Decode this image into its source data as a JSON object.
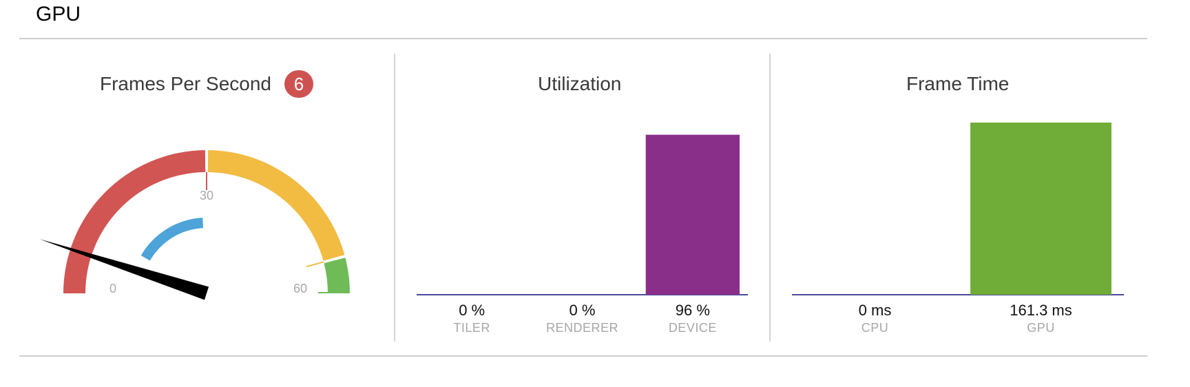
{
  "section": {
    "title": "GPU"
  },
  "fps_panel": {
    "title": "Frames Per Second",
    "badge_value": "6",
    "gauge": {
      "min": 0,
      "max": 60,
      "current": 6,
      "ticks": [
        "0",
        "30",
        "60"
      ],
      "zones": [
        {
          "name": "low",
          "from": 0,
          "to": 30,
          "color": "#d15553"
        },
        {
          "name": "medium",
          "from": 30,
          "to": 55,
          "color": "#f2bb42"
        },
        {
          "name": "high",
          "from": 55,
          "to": 60,
          "color": "#6fbb57"
        }
      ],
      "inner_arc": {
        "from": 10,
        "to": 29,
        "color": "#4ea3d8"
      },
      "needle_color": "#000000"
    }
  },
  "utilization_panel": {
    "title": "Utilization",
    "chart_data": {
      "type": "bar",
      "title": "Utilization",
      "categories": [
        "TILER",
        "RENDERER",
        "DEVICE"
      ],
      "values": [
        0,
        0,
        96
      ],
      "value_labels": [
        "0 %",
        "0 %",
        "96 %"
      ],
      "unit": "%",
      "ylim": [
        0,
        100
      ],
      "bar_color": "#8a2f89",
      "baseline_color": "#4a4a9a"
    }
  },
  "frame_time_panel": {
    "title": "Frame Time",
    "chart_data": {
      "type": "bar",
      "title": "Frame Time",
      "categories": [
        "CPU",
        "GPU"
      ],
      "values": [
        0,
        161.3
      ],
      "value_labels": [
        "0 ms",
        "161.3 ms"
      ],
      "unit": "ms",
      "ylim": [
        0,
        161.3
      ],
      "bar_color": "#6fac38",
      "baseline_color": "#4a4a9a"
    }
  }
}
